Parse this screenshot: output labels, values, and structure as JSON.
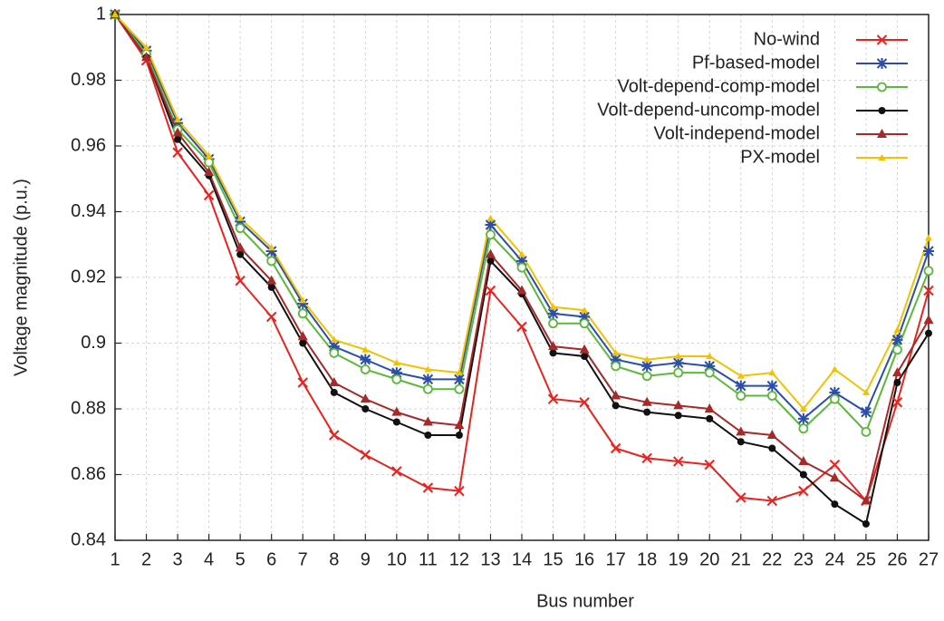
{
  "chart_data": {
    "type": "line",
    "x_label": "Bus number",
    "y_label": "Voltage magnitude (p.u.)",
    "x": [
      1,
      2,
      3,
      4,
      5,
      6,
      7,
      8,
      9,
      10,
      11,
      12,
      13,
      14,
      15,
      16,
      17,
      18,
      19,
      20,
      21,
      22,
      23,
      24,
      25,
      26,
      27
    ],
    "xlim": [
      1,
      27
    ],
    "xticks": [
      1,
      2,
      3,
      4,
      5,
      6,
      7,
      8,
      9,
      10,
      11,
      12,
      13,
      14,
      15,
      16,
      17,
      18,
      19,
      20,
      21,
      22,
      23,
      24,
      25,
      26,
      27
    ],
    "ylim": [
      0.84,
      1
    ],
    "yticks": [
      0.84,
      0.86,
      0.88,
      0.9,
      0.92,
      0.94,
      0.96,
      0.98,
      1
    ],
    "grid": true,
    "legend": "upper right",
    "series": [
      {
        "name": "No-wind",
        "color": "#e8231f",
        "marker": "x",
        "values": [
          1,
          0.986,
          0.958,
          0.945,
          0.919,
          0.908,
          0.888,
          0.872,
          0.866,
          0.861,
          0.856,
          0.855,
          0.916,
          0.905,
          0.883,
          0.882,
          0.868,
          0.865,
          0.864,
          0.863,
          0.853,
          0.852,
          0.855,
          0.863,
          0.852,
          0.882,
          0.916
        ]
      },
      {
        "name": "Pf-based-model",
        "color": "#2b4fa8",
        "marker": "star",
        "values": [
          1,
          0.989,
          0.967,
          0.956,
          0.937,
          0.928,
          0.912,
          0.899,
          0.895,
          0.891,
          0.889,
          0.889,
          0.936,
          0.925,
          0.909,
          0.908,
          0.895,
          0.893,
          0.894,
          0.893,
          0.887,
          0.887,
          0.877,
          0.885,
          0.879,
          0.901,
          0.928
        ]
      },
      {
        "name": "Volt-depend-comp-model",
        "color": "#5cb83a",
        "marker": "open-circle",
        "values": [
          1,
          0.988,
          0.965,
          0.955,
          0.935,
          0.925,
          0.909,
          0.897,
          0.892,
          0.889,
          0.886,
          0.886,
          0.933,
          0.923,
          0.906,
          0.906,
          0.893,
          0.89,
          0.891,
          0.891,
          0.884,
          0.884,
          0.874,
          0.883,
          0.873,
          0.898,
          0.922
        ]
      },
      {
        "name": "Volt-depend-uncomp-model",
        "color": "#111111",
        "marker": "circle",
        "values": [
          1,
          0.987,
          0.962,
          0.951,
          0.927,
          0.917,
          0.9,
          0.885,
          0.88,
          0.876,
          0.872,
          0.872,
          0.925,
          0.915,
          0.897,
          0.896,
          0.881,
          0.879,
          0.878,
          0.877,
          0.87,
          0.868,
          0.86,
          0.851,
          0.845,
          0.888,
          0.903
        ]
      },
      {
        "name": "Volt-independ-model",
        "color": "#a52a2a",
        "marker": "triangle",
        "values": [
          1,
          0.987,
          0.964,
          0.952,
          0.929,
          0.919,
          0.902,
          0.888,
          0.883,
          0.879,
          0.876,
          0.875,
          0.927,
          0.916,
          0.899,
          0.898,
          0.884,
          0.882,
          0.881,
          0.88,
          0.873,
          0.872,
          0.864,
          0.859,
          0.852,
          0.891,
          0.907
        ]
      },
      {
        "name": "PX-model",
        "color": "#f2c200",
        "marker": "small-triangle",
        "values": [
          1,
          0.99,
          0.968,
          0.957,
          0.938,
          0.929,
          0.913,
          0.901,
          0.898,
          0.894,
          0.892,
          0.891,
          0.938,
          0.927,
          0.911,
          0.91,
          0.897,
          0.895,
          0.896,
          0.896,
          0.89,
          0.891,
          0.88,
          0.892,
          0.885,
          0.904,
          0.932
        ]
      }
    ]
  }
}
